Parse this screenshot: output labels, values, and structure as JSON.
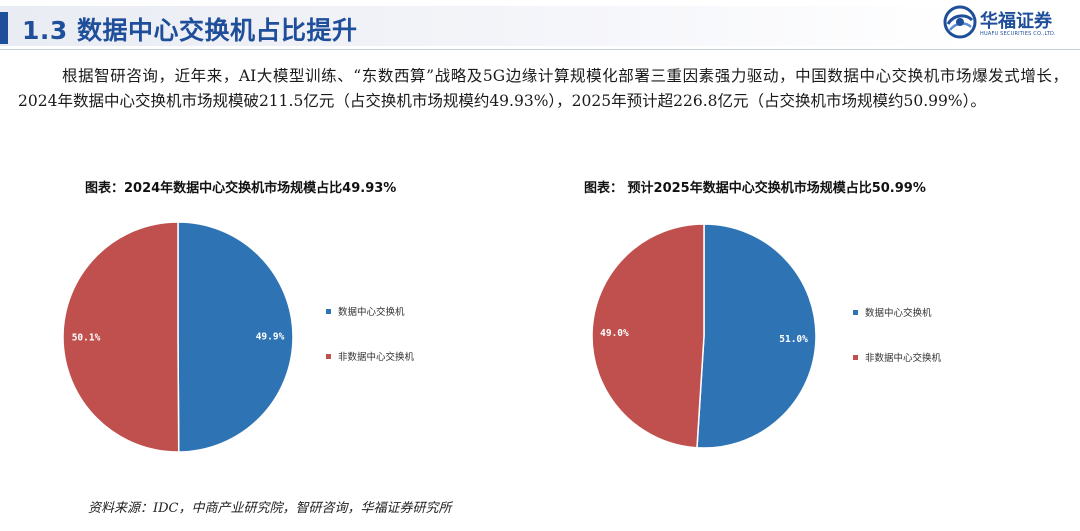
{
  "header": {
    "title": "1.3 数据中心交换机占比提升",
    "logo_cn": "华福证券",
    "logo_en": "HUAFU SECURITIES CO.,LTD."
  },
  "body_text": "根据智研咨询，近年来，AI大模型训练、“东数西算”战略及5G边缘计算规模化部署三重因素强力驱动，中国数据中心交换机市场爆发式增长，2024年数据中心交换机市场规模破211.5亿元（占交换机市场规模约49.93%），2025年预计超226.8亿元（占交换机市场规模约50.99%）。",
  "source": "资料来源：IDC，中商产业研究院，智研咨询，华福证券研究所",
  "colors": {
    "accent": "#1f4e9a",
    "series_dc": "#2e74b5",
    "series_non_dc": "#c0504d"
  },
  "chart_data": [
    {
      "type": "pie",
      "title": "图表：2024年数据中心交换机市场规模占比49.93%",
      "slices": [
        {
          "name": "数据中心交换机",
          "value": 49.9,
          "label": "49.9%",
          "color": "#2e74b5"
        },
        {
          "name": "非数据中心交换机",
          "value": 50.1,
          "label": "50.1%",
          "color": "#c0504d"
        }
      ],
      "legend_position": "right"
    },
    {
      "type": "pie",
      "title": "图表： 预计2025年数据中心交换机市场规模占比50.99%",
      "slices": [
        {
          "name": "数据中心交换机",
          "value": 51.0,
          "label": "51.0%",
          "color": "#2e74b5"
        },
        {
          "name": "非数据中心交换机",
          "value": 49.0,
          "label": "49.0%",
          "color": "#c0504d"
        }
      ],
      "legend_position": "right"
    }
  ]
}
